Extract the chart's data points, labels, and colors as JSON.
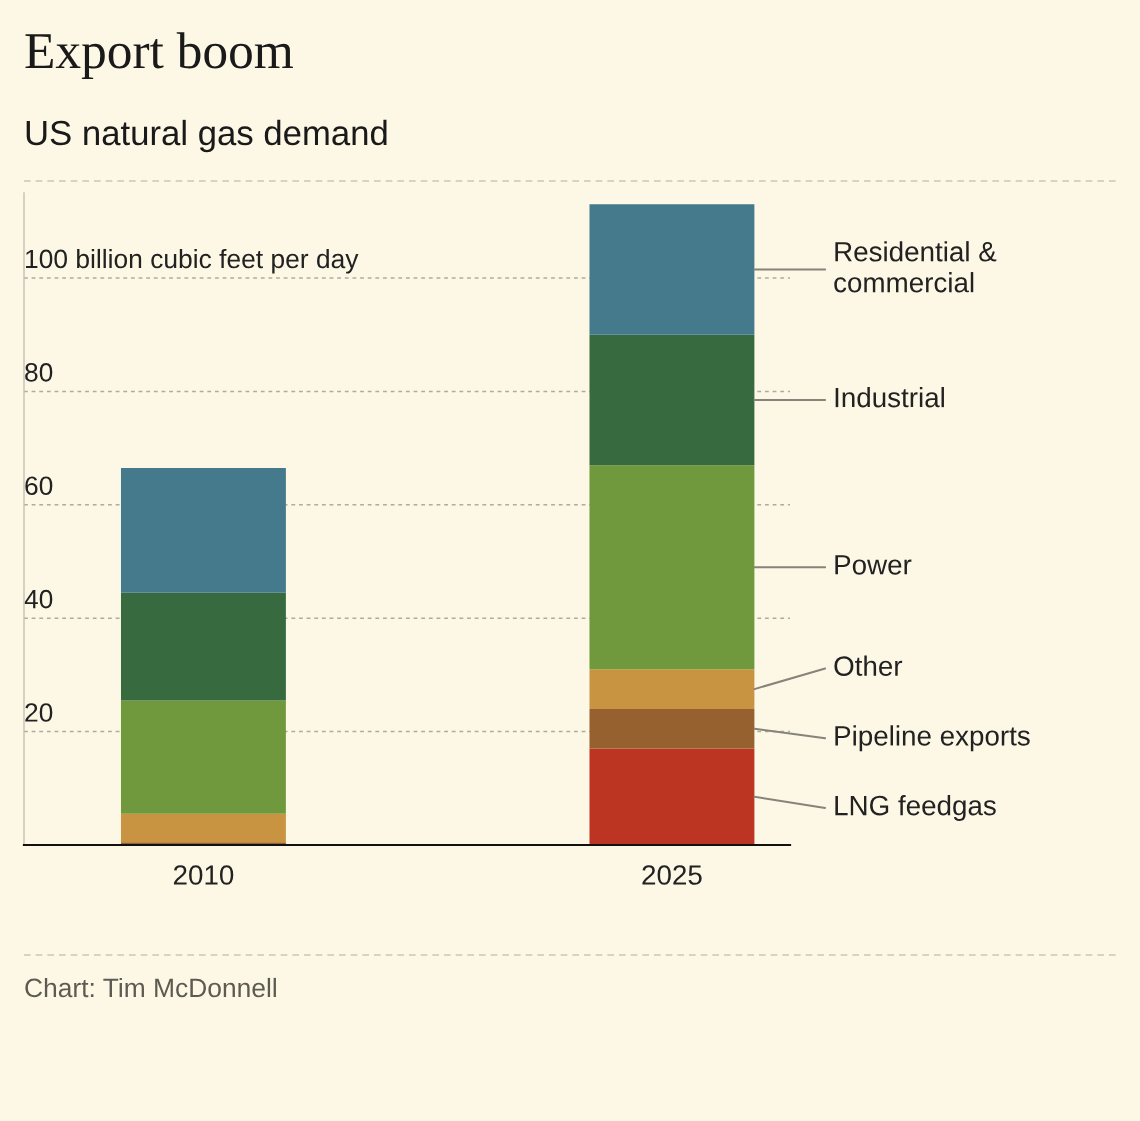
{
  "chart_data": {
    "type": "bar",
    "title": "Export boom",
    "subtitle": "US natural gas demand",
    "categories": [
      "2010",
      "2025"
    ],
    "stacked": true,
    "series": [
      {
        "name": "LNG feedgas",
        "color": "#bb3522",
        "values": [
          0,
          17
        ]
      },
      {
        "name": "Pipeline exports",
        "color": "#96612e",
        "values": [
          0.5,
          7
        ]
      },
      {
        "name": "Other",
        "color": "#c99442",
        "values": [
          5,
          7
        ]
      },
      {
        "name": "Power",
        "color": "#6f993c",
        "values": [
          20,
          36
        ]
      },
      {
        "name": "Industrial",
        "color": "#376b3f",
        "values": [
          19,
          23
        ]
      },
      {
        "name": "Residential &\ncommercial",
        "color": "#457a8c",
        "values": [
          22,
          23
        ]
      }
    ],
    "ylim": [
      0,
      115
    ],
    "yticks": [
      20,
      40,
      60,
      80,
      {
        "value": 100,
        "label": "100 billion cubic feet per day"
      }
    ],
    "grid": "y",
    "annotations": [
      "Chart: Tim McDonnell"
    ]
  }
}
